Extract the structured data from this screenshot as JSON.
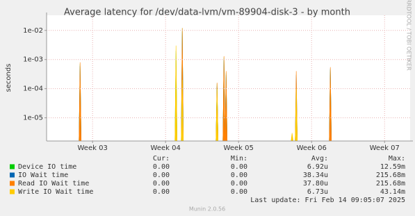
{
  "chart_data": {
    "type": "line",
    "title": "Average latency for /dev/data-lvm/vm-89904-disk-3 - by month",
    "y_label": "seconds",
    "side_label": "RRDTOOL / TOBI OETIKER",
    "log_y": true,
    "grid": true,
    "x": [
      2.829,
      4.143,
      4.229,
      4.705,
      4.8,
      4.829,
      5.733,
      5.79,
      6.257
    ],
    "xlim": [
      2.37,
      7.35
    ],
    "xticks": [
      {
        "value": 3,
        "label": "Week 03"
      },
      {
        "value": 4,
        "label": "Week 04"
      },
      {
        "value": 5,
        "label": "Week 05"
      },
      {
        "value": 6,
        "label": "Week 06"
      },
      {
        "value": 7,
        "label": "Week 07"
      }
    ],
    "ylim": [
      1.6e-06,
      0.033
    ],
    "yticks": [
      {
        "value": 1e-05,
        "label": "1e-05"
      },
      {
        "value": 0.0001,
        "label": "1e-04"
      },
      {
        "value": 0.001,
        "label": "1e-03"
      },
      {
        "value": 0.01,
        "label": "1e-02"
      }
    ],
    "columns": [
      "Cur:",
      "Min:",
      "Avg:",
      "Max:"
    ],
    "series": [
      {
        "name": "Device IO time",
        "color": "#00cc00",
        "values": [
          0.0007,
          0.002,
          0.012,
          0.00015,
          0.0012,
          0.00035,
          null,
          0.0001,
          0.00045
        ],
        "stats": [
          "0.00",
          "0.00",
          "6.92u",
          "12.59m"
        ]
      },
      {
        "name": "IO Wait time",
        "color": "#0066b3",
        "values": [
          0.0006,
          null,
          0.009,
          0.00012,
          0.001,
          0.0003,
          null,
          0.0003,
          0.0005
        ],
        "stats": [
          "0.00",
          "0.00",
          "38.34u",
          "215.68m"
        ]
      },
      {
        "name": "Read IO Wait time",
        "color": "#ff8000",
        "values": [
          0.0008,
          null,
          0.012,
          0.00016,
          0.0013,
          0.0004,
          null,
          0.0004,
          0.00055
        ],
        "stats": [
          "0.00",
          "0.00",
          "37.80u",
          "215.68m"
        ]
      },
      {
        "name": "Write IO Wait time",
        "color": "#ffcc00",
        "values": [
          null,
          0.003,
          0.0002,
          0.0001,
          null,
          null,
          3e-06,
          0.0001,
          null
        ],
        "stats": [
          "0.00",
          "0.00",
          "6.73u",
          "43.14m"
        ]
      }
    ],
    "last_update": "Last update: Fri Feb 14 09:05:07 2025",
    "footer": "Munin 2.0.56"
  }
}
